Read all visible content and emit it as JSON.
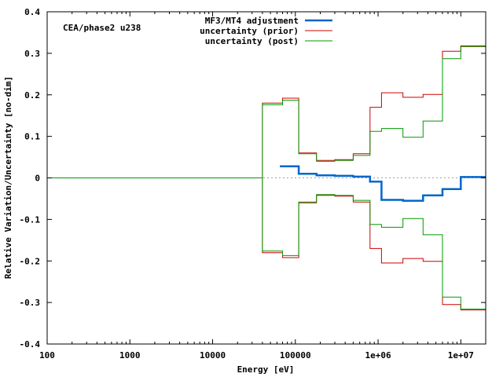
{
  "chart_data": {
    "type": "line",
    "annotation": "CEA/phase2 u238",
    "xlabel": "Energy [eV]",
    "ylabel": "Relative Variation/Uncertainty [no-dim]",
    "xscale": "log",
    "xlim": [
      100,
      20000000
    ],
    "ylim": [
      -0.4,
      0.4
    ],
    "xticks": [
      100,
      1000,
      10000,
      100000,
      1000000,
      10000000
    ],
    "xtick_labels": [
      "100",
      "1000",
      "10000",
      "100000",
      "1e+06",
      "1e+07"
    ],
    "yticks": [
      -0.4,
      -0.3,
      -0.2,
      -0.1,
      0,
      0.1,
      0.2,
      0.3,
      0.4
    ],
    "ytick_labels": [
      "-0.4",
      "-0.3",
      "-0.2",
      "-0.1",
      "0",
      "0.1",
      "0.2",
      "0.3",
      "0.4"
    ],
    "legend_position": "top-center",
    "zero_line": "dotted gray",
    "series": [
      {
        "name": "MF3/MT4 adjustment",
        "color": "#0066cc",
        "style": "step",
        "x": [
          65000,
          110000,
          180000,
          300000,
          500000,
          800000,
          1100000,
          2000000,
          3500000,
          6000000,
          10000000,
          20000000
        ],
        "y": [
          0.028,
          0.01,
          0.006,
          0.005,
          0.003,
          -0.009,
          -0.053,
          -0.055,
          -0.042,
          -0.027,
          0.002,
          0.002
        ]
      },
      {
        "name": "uncertainty (prior)",
        "color": "#cc0000",
        "style": "step-symmetric",
        "x": [
          10,
          40000,
          70000,
          110000,
          180000,
          300000,
          500000,
          800000,
          1100000,
          2000000,
          3500000,
          6000000,
          10000000,
          20000000
        ],
        "y": [
          0.0,
          0.18,
          0.192,
          0.06,
          0.042,
          0.044,
          0.058,
          0.17,
          0.205,
          0.194,
          0.201,
          0.305,
          0.318,
          0.318
        ]
      },
      {
        "name": "uncertainty (post)",
        "color": "#009900",
        "style": "step-symmetric",
        "x": [
          10,
          40000,
          70000,
          110000,
          180000,
          300000,
          500000,
          800000,
          1100000,
          2000000,
          3500000,
          6000000,
          10000000,
          20000000
        ],
        "y": [
          0.0,
          0.176,
          0.187,
          0.058,
          0.04,
          0.042,
          0.054,
          0.112,
          0.119,
          0.098,
          0.137,
          0.287,
          0.316,
          0.316
        ]
      }
    ]
  }
}
